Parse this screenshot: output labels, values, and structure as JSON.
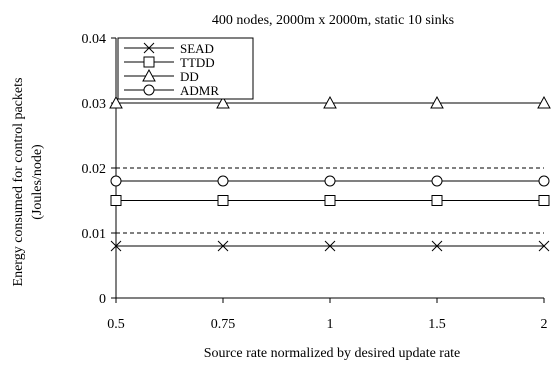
{
  "chart_data": {
    "type": "line",
    "title": "400 nodes, 2000m x 2000m, static 10 sinks",
    "xlabel": "Source rate normalized by desired update rate",
    "ylabel_line1": "Energy consumed for control packets",
    "ylabel_line2": "(Joules/node)",
    "categories": [
      "0.5",
      "0.75",
      "1",
      "1.5",
      "2"
    ],
    "ylim": [
      0,
      0.04
    ],
    "yticks": [
      "0",
      "0.01",
      "0.02",
      "0.03",
      "0.04"
    ],
    "y_tick_values": [
      0,
      0.01,
      0.02,
      0.03,
      0.04
    ],
    "grid": "horizontal dashed",
    "legend_position": "top-left",
    "series": [
      {
        "name": "SEAD",
        "marker": "x",
        "values": [
          0.008,
          0.008,
          0.008,
          0.008,
          0.008
        ]
      },
      {
        "name": "TTDD",
        "marker": "square",
        "values": [
          0.015,
          0.015,
          0.015,
          0.015,
          0.015
        ]
      },
      {
        "name": "DD",
        "marker": "triangle",
        "values": [
          0.03,
          0.03,
          0.03,
          0.03,
          0.03
        ]
      },
      {
        "name": "ADMR",
        "marker": "circle",
        "values": [
          0.018,
          0.018,
          0.018,
          0.018,
          0.018
        ]
      }
    ]
  }
}
